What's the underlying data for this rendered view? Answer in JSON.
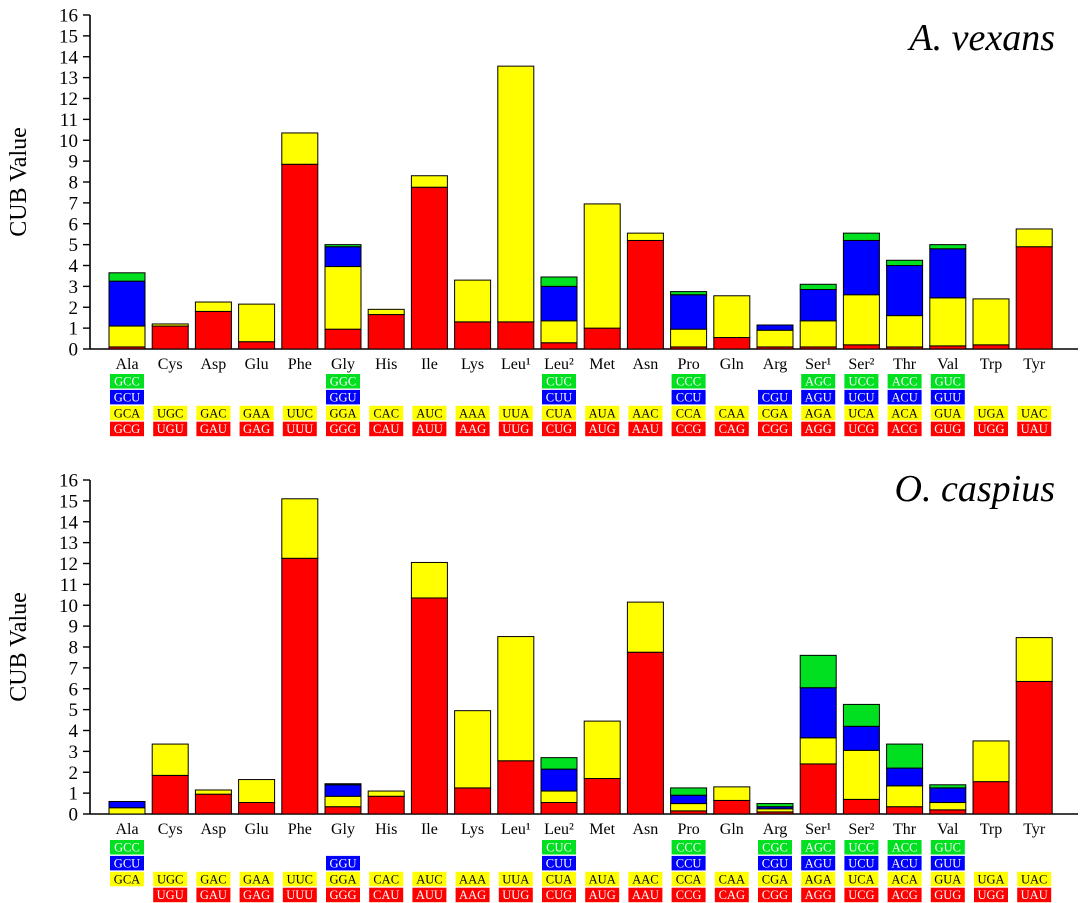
{
  "colors": {
    "red": "#ff0000",
    "yellow": "#ffff00",
    "blue": "#0000ff",
    "green": "#00e020",
    "text_on_yellow": "#000000",
    "text_on_other": "#ffffff"
  },
  "chart_data": [
    {
      "type": "bar",
      "stacked": true,
      "title": "A. vexans",
      "ylabel": "CUB Value",
      "ylim": [
        0,
        16
      ],
      "yticks": [
        "0",
        "1",
        "2",
        "3",
        "4",
        "5",
        "6",
        "7",
        "8",
        "9",
        "10",
        "11",
        "12",
        "13",
        "14",
        "15",
        "16"
      ],
      "categories": [
        "Ala",
        "Cys",
        "Asp",
        "Glu",
        "Phe",
        "Gly",
        "His",
        "Ile",
        "Lys",
        "Leu¹",
        "Leu²",
        "Met",
        "Asn",
        "Pro",
        "Gln",
        "Arg",
        "Ser¹",
        "Ser²",
        "Thr",
        "Val",
        "Trp",
        "Tyr"
      ],
      "series": [
        {
          "name": "red",
          "values": [
            0.1,
            1.1,
            1.8,
            0.35,
            8.85,
            0.95,
            1.65,
            7.75,
            1.3,
            1.3,
            0.3,
            1.0,
            5.2,
            0.1,
            0.55,
            0.1,
            0.1,
            0.2,
            0.1,
            0.15,
            0.2,
            4.9
          ]
        },
        {
          "name": "yellow",
          "values": [
            1.0,
            0.1,
            0.45,
            1.8,
            1.5,
            3.0,
            0.25,
            0.55,
            2.0,
            12.25,
            1.05,
            5.95,
            0.35,
            0.85,
            2.0,
            0.8,
            1.25,
            2.4,
            1.5,
            2.3,
            2.2,
            0.85
          ]
        },
        {
          "name": "blue",
          "values": [
            2.15,
            0,
            0,
            0,
            0,
            0.95,
            0,
            0,
            0,
            0,
            1.65,
            0,
            0,
            1.65,
            0,
            0.25,
            1.5,
            2.6,
            2.4,
            2.35,
            0,
            0
          ]
        },
        {
          "name": "green",
          "values": [
            0.4,
            0,
            0,
            0,
            0,
            0.1,
            0,
            0,
            0,
            0,
            0.45,
            0,
            0,
            0.15,
            0,
            0,
            0.25,
            0.35,
            0.25,
            0.2,
            0,
            0
          ]
        }
      ],
      "codons": {
        "green": [
          "GCC",
          "",
          "",
          "",
          "",
          "GGC",
          "",
          "",
          "",
          "",
          "CUC",
          "",
          "",
          "CCC",
          "",
          "",
          "AGC",
          "UCC",
          "ACC",
          "GUC",
          "",
          ""
        ],
        "blue": [
          "GCU",
          "",
          "",
          "",
          "",
          "GGU",
          "",
          "",
          "",
          "",
          "CUU",
          "",
          "",
          "CCU",
          "",
          "CGU",
          "AGU",
          "UCU",
          "ACU",
          "GUU",
          "",
          ""
        ],
        "yellow": [
          "GCA",
          "UGC",
          "GAC",
          "GAA",
          "UUC",
          "GGA",
          "CAC",
          "AUC",
          "AAA",
          "UUA",
          "CUA",
          "AUA",
          "AAC",
          "CCA",
          "CAA",
          "CGA",
          "AGA",
          "UCA",
          "ACA",
          "GUA",
          "UGA",
          "UAC"
        ],
        "red": [
          "GCG",
          "UGU",
          "GAU",
          "GAG",
          "UUU",
          "GGG",
          "CAU",
          "AUU",
          "AAG",
          "UUG",
          "CUG",
          "AUG",
          "AAU",
          "CCG",
          "CAG",
          "CGG",
          "AGG",
          "UCG",
          "ACG",
          "GUG",
          "UGG",
          "UAU"
        ]
      }
    },
    {
      "type": "bar",
      "stacked": true,
      "title": "O. caspius",
      "ylabel": "CUB Value",
      "ylim": [
        0,
        16
      ],
      "yticks": [
        "0",
        "1",
        "2",
        "3",
        "4",
        "5",
        "6",
        "7",
        "8",
        "9",
        "10",
        "11",
        "12",
        "13",
        "14",
        "15",
        "16"
      ],
      "categories": [
        "Ala",
        "Cys",
        "Asp",
        "Glu",
        "Phe",
        "Gly",
        "His",
        "Ile",
        "Lys",
        "Leu¹",
        "Leu²",
        "Met",
        "Asn",
        "Pro",
        "Gln",
        "Arg",
        "Ser¹",
        "Ser²",
        "Thr",
        "Val",
        "Trp",
        "Tyr"
      ],
      "series": [
        {
          "name": "red",
          "values": [
            0,
            1.85,
            0.95,
            0.55,
            12.25,
            0.35,
            0.85,
            10.35,
            1.25,
            2.55,
            0.55,
            1.7,
            7.75,
            0.15,
            0.65,
            0.1,
            2.4,
            0.7,
            0.35,
            0.2,
            1.55,
            6.35
          ]
        },
        {
          "name": "yellow",
          "values": [
            0.3,
            1.5,
            0.2,
            1.1,
            2.85,
            0.5,
            0.25,
            1.7,
            3.7,
            5.95,
            0.55,
            2.75,
            2.4,
            0.35,
            0.65,
            0.15,
            1.25,
            2.35,
            1.0,
            0.35,
            1.95,
            2.1
          ]
        },
        {
          "name": "blue",
          "values": [
            0.3,
            0,
            0,
            0,
            0,
            0.55,
            0,
            0,
            0,
            0,
            1.05,
            0,
            0,
            0.4,
            0,
            0.1,
            2.4,
            1.15,
            0.85,
            0.7,
            0,
            0
          ]
        },
        {
          "name": "green",
          "values": [
            0,
            0,
            0,
            0,
            0,
            0.05,
            0,
            0,
            0,
            0,
            0.55,
            0,
            0,
            0.35,
            0,
            0.15,
            1.55,
            1.05,
            1.15,
            0.15,
            0,
            0
          ]
        }
      ],
      "codons": {
        "green": [
          "GCC",
          "",
          "",
          "",
          "",
          "",
          "",
          "",
          "",
          "",
          "CUC",
          "",
          "",
          "CCC",
          "",
          "CGC",
          "AGC",
          "UCC",
          "ACC",
          "GUC",
          "",
          ""
        ],
        "blue": [
          "GCU",
          "",
          "",
          "",
          "",
          "GGU",
          "",
          "",
          "",
          "",
          "CUU",
          "",
          "",
          "CCU",
          "",
          "CGU",
          "AGU",
          "UCU",
          "ACU",
          "GUU",
          "",
          ""
        ],
        "yellow": [
          "GCA",
          "UGC",
          "GAC",
          "GAA",
          "UUC",
          "GGA",
          "CAC",
          "AUC",
          "AAA",
          "UUA",
          "CUA",
          "AUA",
          "AAC",
          "CCA",
          "CAA",
          "CGA",
          "AGA",
          "UCA",
          "ACA",
          "GUA",
          "UGA",
          "UAC"
        ],
        "red": [
          "",
          "UGU",
          "GAU",
          "GAG",
          "UUU",
          "GGG",
          "CAU",
          "AUU",
          "AAG",
          "UUG",
          "CUG",
          "AUG",
          "AAU",
          "CCG",
          "CAG",
          "CGG",
          "AGG",
          "UCG",
          "ACG",
          "GUG",
          "UGG",
          "UAU"
        ]
      }
    }
  ]
}
